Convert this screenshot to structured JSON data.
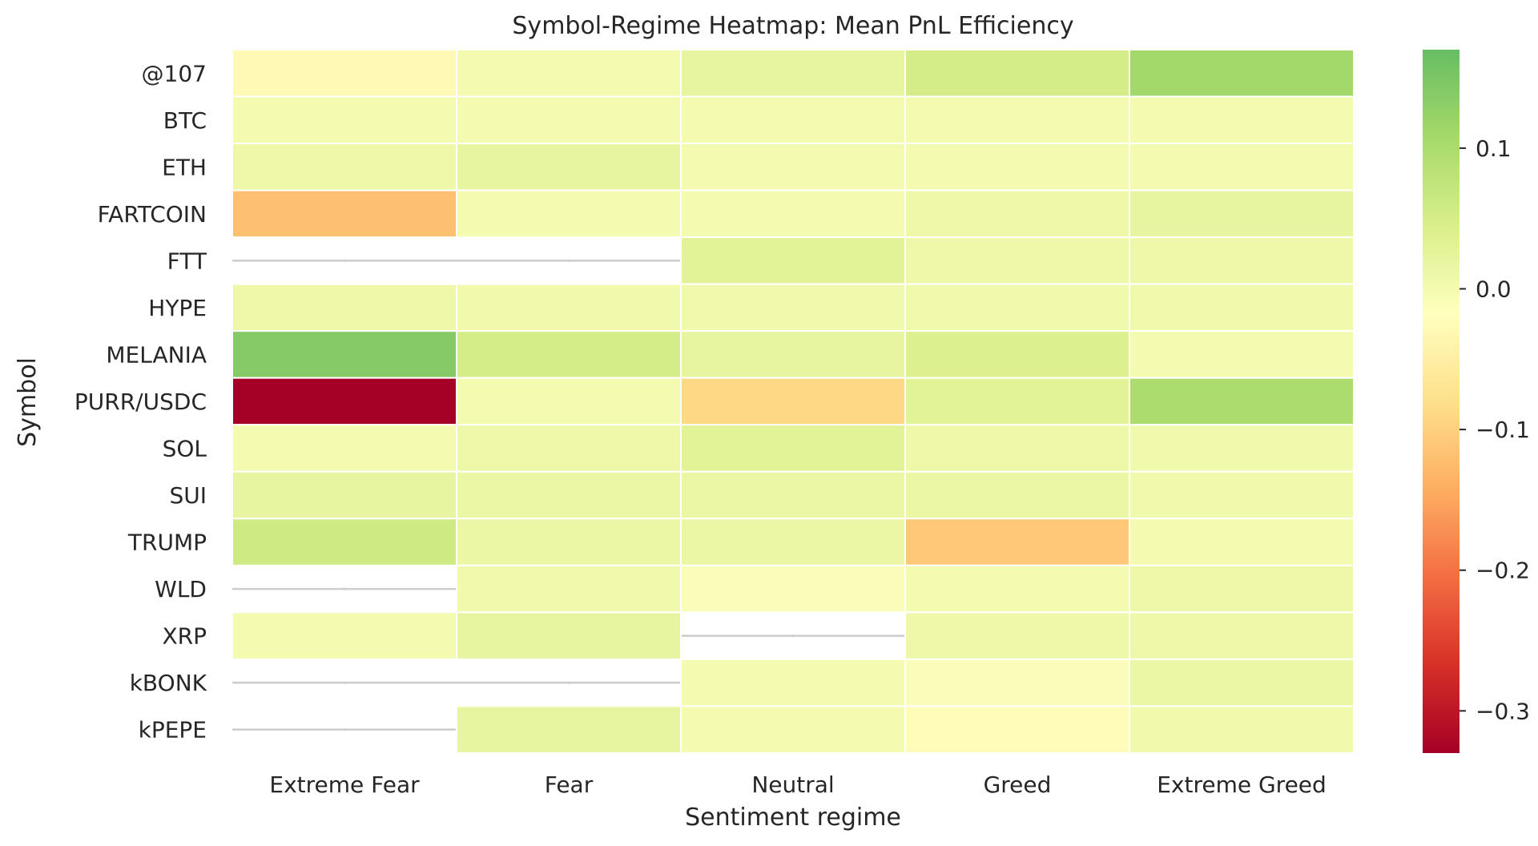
{
  "chart_data": {
    "type": "heatmap",
    "title": "Symbol-Regime Heatmap: Mean PnL Efficiency",
    "xlabel": "Sentiment regime",
    "ylabel": "Symbol",
    "x_categories": [
      "Extreme Fear",
      "Fear",
      "Neutral",
      "Greed",
      "Extreme Greed"
    ],
    "y_categories": [
      "@107",
      "BTC",
      "ETH",
      "FARTCOIN",
      "FTT",
      "HYPE",
      "MELANIA",
      "PURR/USDC",
      "SOL",
      "SUI",
      "TRUMP",
      "WLD",
      "XRP",
      "kBONK",
      "kPEPE"
    ],
    "values": [
      [
        -0.03,
        0.0,
        0.02,
        0.05,
        0.11
      ],
      [
        0.0,
        0.0,
        0.0,
        0.0,
        0.0
      ],
      [
        0.01,
        0.02,
        0.0,
        0.0,
        0.0
      ],
      [
        -0.12,
        0.0,
        0.0,
        0.01,
        0.02
      ],
      [
        null,
        null,
        0.03,
        0.01,
        0.01
      ],
      [
        0.01,
        0.005,
        0.005,
        0.005,
        0.005
      ],
      [
        0.14,
        0.05,
        0.02,
        0.04,
        0.0
      ],
      [
        -0.33,
        0.0,
        -0.09,
        0.03,
        0.1
      ],
      [
        0.0,
        0.01,
        0.03,
        0.01,
        0.005
      ],
      [
        0.02,
        0.015,
        0.015,
        0.015,
        0.005
      ],
      [
        0.06,
        0.015,
        0.015,
        -0.11,
        0.0
      ],
      [
        null,
        0.005,
        -0.01,
        0.0,
        0.01
      ],
      [
        0.0,
        0.02,
        null,
        0.01,
        0.01
      ],
      [
        null,
        null,
        0.0,
        -0.01,
        0.015
      ],
      [
        null,
        0.02,
        0.0,
        -0.025,
        0.005
      ]
    ],
    "colorbar": {
      "vmin": -0.33,
      "vmax": 0.17,
      "ticks": [
        0.1,
        0.0,
        -0.1,
        -0.2,
        -0.3
      ],
      "tick_labels": [
        "0.1",
        "0.0",
        "−0.1",
        "−0.2",
        "−0.3"
      ],
      "colormap": [
        "#a50026",
        "#d73027",
        "#f46d43",
        "#fdae61",
        "#fee08b",
        "#ffffbf",
        "#d9ef8b",
        "#a6d96a",
        "#66bd63"
      ]
    },
    "missing_color": "#ffffff",
    "grid": true,
    "legend": "colorbar-right"
  }
}
